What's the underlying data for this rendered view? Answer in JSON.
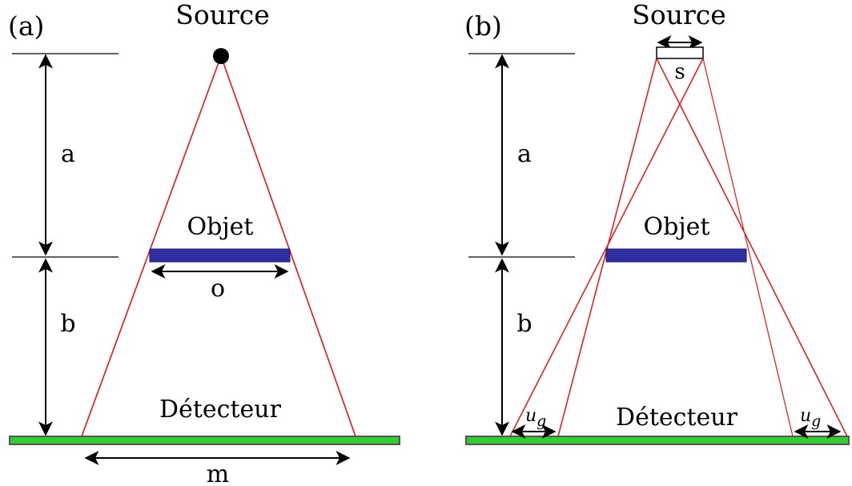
{
  "panel_a": {
    "tag": "(a)",
    "source_label": "Source",
    "distance_source_object": "a",
    "distance_object_detector": "b",
    "object_label": "Objet",
    "object_size": "o",
    "detector_label": "Détecteur",
    "image_size": "m"
  },
  "panel_b": {
    "tag": "(b)",
    "source_label": "Source",
    "source_size": "s",
    "distance_source_object": "a",
    "distance_object_detector": "b",
    "object_label": "Objet",
    "detector_label": "Détecteur",
    "penumbra_left": "u",
    "penumbra_left_sub": "g",
    "penumbra_right": "u",
    "penumbra_right_sub": "g"
  },
  "colors": {
    "ray": "#e8141c",
    "object": "#2f2fa0",
    "detector": "#33cc33",
    "detector_border": "#555555"
  }
}
